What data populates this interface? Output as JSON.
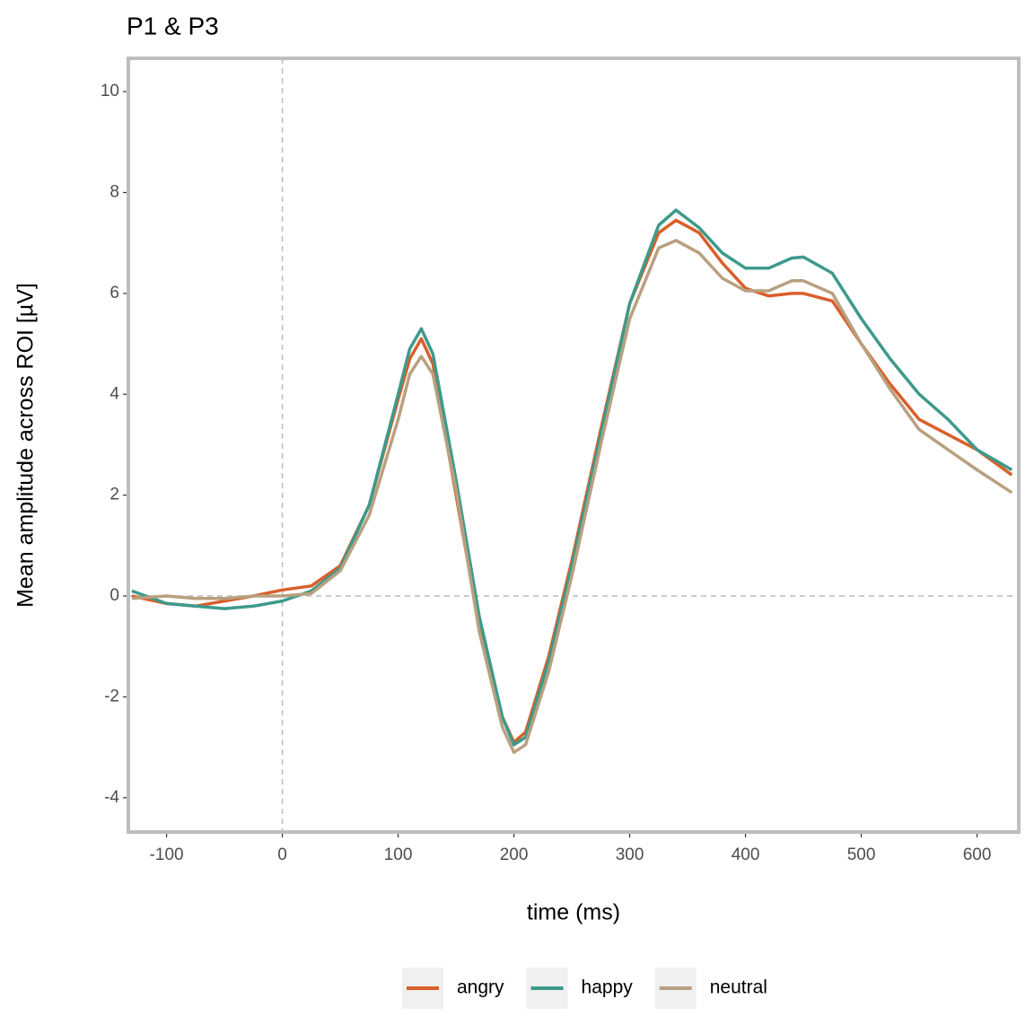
{
  "chart_data": {
    "type": "line",
    "title": "P1 & P3",
    "x_label": "time (ms)",
    "y_label": "Mean amplitude across ROI [µV]",
    "x": [
      -130,
      -100,
      -75,
      -50,
      -25,
      0,
      25,
      50,
      75,
      100,
      110,
      120,
      130,
      150,
      170,
      190,
      200,
      210,
      230,
      250,
      275,
      300,
      325,
      340,
      360,
      380,
      400,
      420,
      440,
      450,
      475,
      500,
      525,
      550,
      575,
      600,
      630
    ],
    "series": [
      {
        "name": "angry",
        "color": "#d95f2b",
        "values": [
          0.0,
          -0.15,
          -0.2,
          -0.1,
          0.0,
          0.12,
          0.2,
          0.6,
          1.8,
          3.9,
          4.7,
          5.1,
          4.6,
          2.0,
          -0.6,
          -2.4,
          -2.9,
          -2.7,
          -1.2,
          0.7,
          3.3,
          5.8,
          7.2,
          7.45,
          7.2,
          6.6,
          6.1,
          5.95,
          6.0,
          6.0,
          5.85,
          5.0,
          4.2,
          3.5,
          3.2,
          2.9,
          2.4
        ]
      },
      {
        "name": "happy",
        "color": "#3d9a8b",
        "values": [
          0.1,
          -0.15,
          -0.2,
          -0.25,
          -0.2,
          -0.1,
          0.1,
          0.55,
          1.8,
          4.0,
          4.9,
          5.3,
          4.8,
          2.3,
          -0.4,
          -2.4,
          -2.95,
          -2.8,
          -1.3,
          0.6,
          3.2,
          5.8,
          7.35,
          7.65,
          7.3,
          6.8,
          6.5,
          6.5,
          6.7,
          6.72,
          6.4,
          5.5,
          4.7,
          4.0,
          3.5,
          2.9,
          2.5
        ]
      },
      {
        "name": "neutral",
        "color": "#b8a080",
        "values": [
          -0.05,
          0.0,
          -0.05,
          -0.05,
          0.0,
          0.0,
          0.05,
          0.5,
          1.6,
          3.5,
          4.4,
          4.75,
          4.4,
          2.1,
          -0.7,
          -2.6,
          -3.1,
          -2.95,
          -1.5,
          0.4,
          3.0,
          5.5,
          6.9,
          7.05,
          6.8,
          6.3,
          6.05,
          6.05,
          6.25,
          6.25,
          6.0,
          5.0,
          4.1,
          3.3,
          2.9,
          2.5,
          2.05
        ]
      }
    ],
    "xlim": [
      -133,
      636
    ],
    "xticks": [
      -100,
      0,
      100,
      200,
      300,
      400,
      500,
      600
    ],
    "ylim": [
      -4.68,
      10.66
    ],
    "yticks": [
      -4,
      -2,
      0,
      2,
      4,
      6,
      8,
      10
    ],
    "vline": 0,
    "hline": 0,
    "legend": "bottom"
  }
}
